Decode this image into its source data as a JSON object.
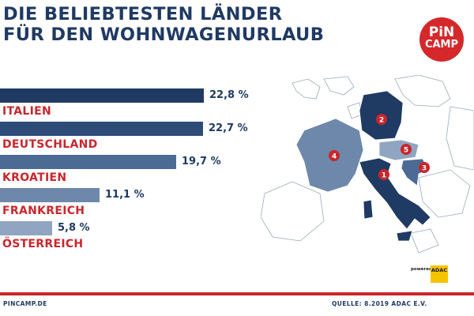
{
  "header": {
    "title_line1": "DIE BELIEBTESTEN LÄNDER",
    "title_line2": "FÜR DEN WOHNWAGENURLAUB"
  },
  "logo": {
    "line1": "PiN",
    "line2": "CAMP"
  },
  "chart_data": {
    "type": "bar",
    "orientation": "horizontal",
    "categories": [
      "ITALIEN",
      "DEUTSCHLAND",
      "KROATIEN",
      "FRANKREICH",
      "ÖSTERREICH"
    ],
    "values": [
      22.8,
      22.7,
      19.7,
      11.1,
      5.8
    ],
    "value_labels": [
      "22,8 %",
      "22,7 %",
      "19,7 %",
      "11,1 %",
      "5,8 %"
    ],
    "bar_colors": [
      "#1f3a63",
      "#2d4c78",
      "#4b6b94",
      "#6d88ab",
      "#8fa5c2"
    ],
    "label_color": "#c9262c",
    "title": "DIE BELIEBTESTEN LÄNDER FÜR DEN WOHNWAGENURLAUB",
    "xlabel": "",
    "ylabel": ""
  },
  "map": {
    "markers": [
      {
        "number": "1",
        "country": "ITALIEN"
      },
      {
        "number": "2",
        "country": "DEUTSCHLAND"
      },
      {
        "number": "3",
        "country": "KROATIEN"
      },
      {
        "number": "4",
        "country": "FRANKREICH"
      },
      {
        "number": "5",
        "country": "ÖSTERREICH"
      }
    ],
    "highlight_color": "#1f3a63",
    "marker_color": "#c9262c"
  },
  "powered": {
    "text": "powered by",
    "brand": "ADAC"
  },
  "footer": {
    "left": "PINCAMP.DE",
    "right": "QUELLE: 8.2019 ADAC E.V."
  }
}
